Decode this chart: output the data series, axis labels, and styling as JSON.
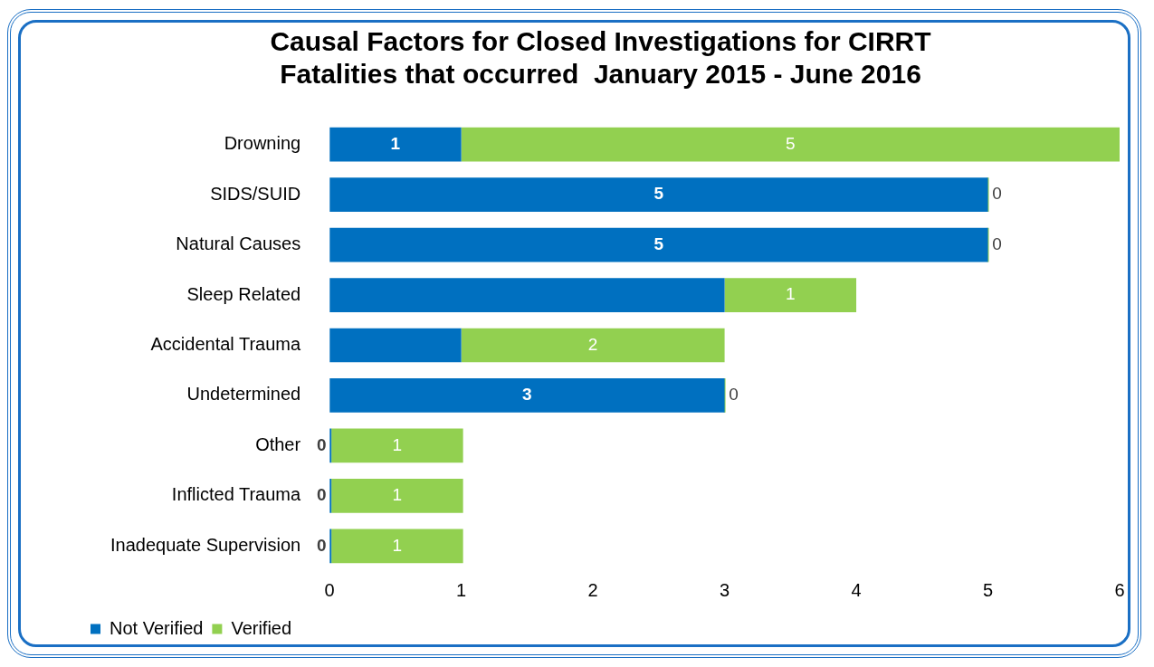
{
  "chart_data": {
    "type": "bar",
    "orientation": "horizontal",
    "stacked": true,
    "title": "Causal Factors for Closed Investigations for CIRRT Fatalities that occurred  January 2015 - June 2016",
    "categories": [
      "Drowning",
      "SIDS/SUID",
      "Natural Causes",
      "Sleep Related",
      "Accidental Trauma",
      "Undetermined",
      "Other",
      "Inflicted Trauma",
      "Inadequate Supervision"
    ],
    "series": [
      {
        "name": "Not Verified",
        "color": "#0070c0",
        "values": [
          1,
          5,
          5,
          3,
          1,
          3,
          0,
          0,
          0
        ],
        "value_labels": [
          "1",
          "5",
          "5",
          null,
          null,
          "3",
          "0",
          "0",
          "0"
        ]
      },
      {
        "name": "Verified",
        "color": "#92d050",
        "values": [
          5,
          0,
          0,
          1,
          2,
          0,
          1,
          1,
          1
        ],
        "value_labels": [
          "5",
          "0",
          "0",
          "1",
          "2",
          "0",
          "1",
          "1",
          "1"
        ]
      }
    ],
    "xlim": [
      0,
      6
    ],
    "xticks": [
      0,
      1,
      2,
      3,
      4,
      5,
      6
    ],
    "grid": false,
    "legend": "bottom left"
  }
}
